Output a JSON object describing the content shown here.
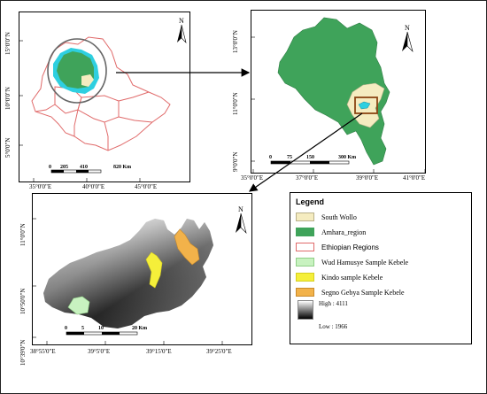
{
  "map1": {
    "lat_labels": [
      "15°0'0\"N",
      "10°0'0\"N",
      "5°0'0\"N"
    ],
    "lon_labels": [
      "35°0'0\"E",
      "40°0'0\"E",
      "45°0'0\"E"
    ],
    "scale_ticks": [
      "0",
      "205",
      "410",
      "820 Km"
    ],
    "north": "N"
  },
  "map2": {
    "lat_labels": [
      "13°0'0\"N",
      "11°0'0\"N",
      "9°0'0\"N"
    ],
    "lon_labels": [
      "35°0'0\"E",
      "37°0'0\"E",
      "39°0'0\"E",
      "41°0'0\"E"
    ],
    "scale_ticks": [
      "0",
      "75",
      "150",
      "300 Km"
    ],
    "north": "N"
  },
  "map3": {
    "lat_labels": [
      "11°0'0\"N",
      "10°50'0\"N",
      "10°39'0\"N"
    ],
    "lon_labels": [
      "38°55'0\"E",
      "39°5'0\"E",
      "39°15'0\"E",
      "39°25'0\"E"
    ],
    "scale_ticks": [
      "0",
      "5",
      "10",
      "20 Km"
    ],
    "north": "N"
  },
  "legend": {
    "title": "Legend",
    "items": [
      {
        "label": "South Wollo",
        "color": "#f5ecc0",
        "border": "#b8b08a"
      },
      {
        "label": "Amhara_region",
        "color": "#3fa35a",
        "border": "#3fa35a"
      },
      {
        "label": "Ethiopian Regions",
        "color": "#ffffff",
        "border": "#e06a6a"
      },
      {
        "label": "Wud Hamusye Sample Kebele",
        "color": "#c8f2c0",
        "border": "#8fcf86"
      },
      {
        "label": "Kindo sample Kebele",
        "color": "#f5ef3a",
        "border": "#d6cf20"
      },
      {
        "label": "Segno Gebya Sample Kebele",
        "color": "#f2b24a",
        "border": "#c98a2a"
      }
    ],
    "high": "High : 4111",
    "low": "Low : 1966"
  },
  "colors": {
    "amhara": "#3fa35a",
    "south_wollo": "#f5ecc0",
    "regions_outline": "#e06a6a",
    "buffer_cyan": "#2ecfe0",
    "study_box": "#8b4513"
  }
}
